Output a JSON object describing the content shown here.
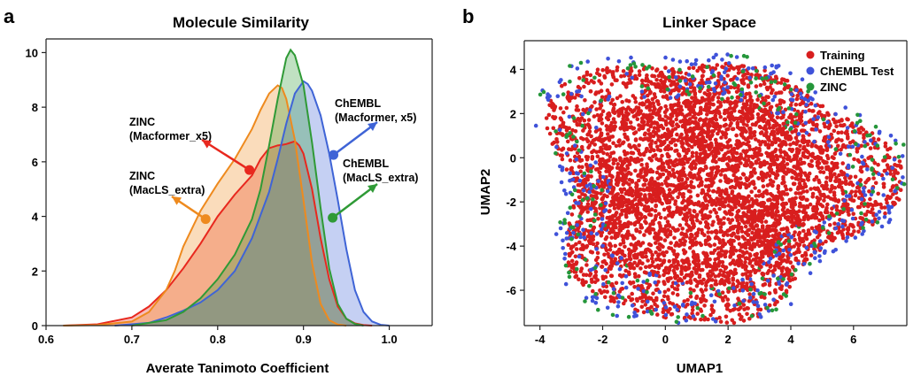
{
  "panels": [
    {
      "letter": "a"
    },
    {
      "letter": "b"
    }
  ],
  "chart_data": [
    {
      "type": "area",
      "title": "Molecule Similarity",
      "xlabel": "Averate Tanimoto Coefficient",
      "ylabel": "",
      "xlim": [
        0.6,
        1.05
      ],
      "ylim": [
        0,
        10.5
      ],
      "xticks": [
        "0.6",
        "0.7",
        "0.8",
        "0.9",
        "1.0"
      ],
      "yticks": [
        "0",
        "2",
        "4",
        "6",
        "8",
        "10"
      ],
      "grid": false,
      "legend": "none",
      "series": [
        {
          "name": "ZINC (Macformer_x5)",
          "color": "#e8281e",
          "x": [
            0.62,
            0.66,
            0.7,
            0.72,
            0.74,
            0.76,
            0.78,
            0.8,
            0.82,
            0.84,
            0.85,
            0.86,
            0.87,
            0.875,
            0.88,
            0.885,
            0.89,
            0.895,
            0.9,
            0.91,
            0.92,
            0.93,
            0.94,
            0.95,
            0.96,
            0.97,
            0.98
          ],
          "y": [
            0,
            0.05,
            0.3,
            0.7,
            1.3,
            2.1,
            3.0,
            4.0,
            4.8,
            5.5,
            6.1,
            6.5,
            6.6,
            6.62,
            6.65,
            6.7,
            6.75,
            6.6,
            6.3,
            5.0,
            3.2,
            1.7,
            0.7,
            0.25,
            0.08,
            0.02,
            0
          ]
        },
        {
          "name": "ZINC (MacLS_extra)",
          "color": "#ee8a1e",
          "x": [
            0.62,
            0.66,
            0.7,
            0.72,
            0.74,
            0.75,
            0.76,
            0.78,
            0.8,
            0.82,
            0.84,
            0.85,
            0.86,
            0.87,
            0.875,
            0.88,
            0.89,
            0.9,
            0.91,
            0.92,
            0.93,
            0.94,
            0.95
          ],
          "y": [
            0,
            0.02,
            0.15,
            0.5,
            1.3,
            2.0,
            2.9,
            4.2,
            5.2,
            6.1,
            7.2,
            7.9,
            8.5,
            8.8,
            8.7,
            8.3,
            6.8,
            4.6,
            2.3,
            0.8,
            0.2,
            0.04,
            0
          ]
        },
        {
          "name": "ChEMBL (Macformer, x5)",
          "color": "#3f64d6",
          "x": [
            0.68,
            0.72,
            0.74,
            0.76,
            0.78,
            0.8,
            0.82,
            0.84,
            0.86,
            0.87,
            0.88,
            0.89,
            0.9,
            0.905,
            0.91,
            0.92,
            0.93,
            0.94,
            0.95,
            0.96,
            0.97,
            0.98,
            0.99,
            1.0
          ],
          "y": [
            0,
            0.1,
            0.3,
            0.55,
            0.85,
            1.3,
            2.0,
            3.2,
            4.9,
            6.1,
            7.4,
            8.5,
            8.95,
            8.85,
            8.6,
            7.7,
            6.3,
            4.6,
            2.8,
            1.3,
            0.5,
            0.15,
            0.03,
            0
          ]
        },
        {
          "name": "ChEMBL (MacLS_extra)",
          "color": "#2f9a36",
          "x": [
            0.7,
            0.74,
            0.76,
            0.78,
            0.8,
            0.82,
            0.84,
            0.85,
            0.86,
            0.87,
            0.88,
            0.885,
            0.89,
            0.9,
            0.91,
            0.92,
            0.93,
            0.94,
            0.95,
            0.96,
            0.97
          ],
          "y": [
            0,
            0.2,
            0.5,
            1.0,
            1.7,
            2.6,
            3.9,
            5.0,
            6.6,
            8.3,
            9.8,
            10.1,
            9.9,
            8.8,
            6.7,
            4.3,
            2.1,
            0.8,
            0.25,
            0.06,
            0
          ]
        }
      ],
      "annotations": [
        {
          "text_lines": [
            "ZINC",
            "(Macformer_x5)"
          ],
          "series": "ZINC (Macformer_x5)",
          "point": [
            0.837,
            5.7
          ]
        },
        {
          "text_lines": [
            "ZINC",
            "(MacLS_extra)"
          ],
          "series": "ZINC (MacLS_extra)",
          "point": [
            0.786,
            3.9
          ]
        },
        {
          "text_lines": [
            "ChEMBL",
            "(Macformer, x5)"
          ],
          "series": "ChEMBL (Macformer, x5)",
          "point": [
            0.935,
            6.25
          ]
        },
        {
          "text_lines": [
            "ChEMBL",
            "(MacLS_extra)"
          ],
          "series": "ChEMBL (MacLS_extra)",
          "point": [
            0.934,
            3.95
          ]
        }
      ]
    },
    {
      "type": "scatter",
      "title": "Linker Space",
      "xlabel": "UMAP1",
      "ylabel": "UMAP2",
      "xlim": [
        -4.5,
        7.7
      ],
      "ylim": [
        -7.6,
        5.3
      ],
      "xticks": [
        "-4",
        "-2",
        "0",
        "2",
        "4",
        "6"
      ],
      "yticks": [
        "-6",
        "-4",
        "-2",
        "0",
        "2",
        "4"
      ],
      "grid": false,
      "legend": "top-right",
      "series": [
        {
          "name": "Training",
          "color": "#d81e1e",
          "approx_points": 3600
        },
        {
          "name": "ChEMBL Test",
          "color": "#3f52d9",
          "approx_points": 420
        },
        {
          "name": "ZINC",
          "color": "#25963a",
          "approx_points": 200
        }
      ],
      "cloud": {
        "center": [
          1.4,
          -1.3
        ],
        "radius_x": 5.3,
        "radius_y": 5.9
      }
    }
  ]
}
